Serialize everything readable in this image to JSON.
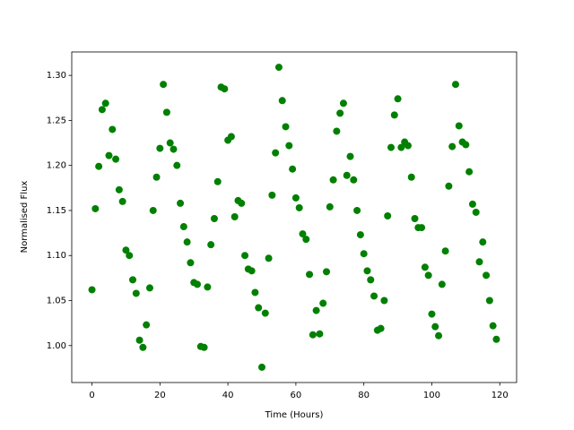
{
  "chart_data": {
    "type": "scatter",
    "xlabel": "Time (Hours)",
    "ylabel": "Normalised Flux",
    "color": "#008000",
    "x": [
      0,
      1,
      2,
      3,
      4,
      5,
      6,
      7,
      8,
      9,
      10,
      11,
      12,
      13,
      14,
      15,
      16,
      17,
      18,
      19,
      20,
      21,
      22,
      23,
      24,
      25,
      26,
      27,
      28,
      29,
      30,
      31,
      32,
      33,
      34,
      35,
      36,
      37,
      38,
      39,
      40,
      41,
      42,
      43,
      44,
      45,
      46,
      47,
      48,
      49,
      50,
      51,
      52,
      53,
      54,
      55,
      56,
      57,
      58,
      59,
      60,
      61,
      62,
      63,
      64,
      65,
      66,
      67,
      68,
      69,
      70,
      71,
      72,
      73,
      74,
      75,
      76,
      77,
      78,
      79,
      80,
      81,
      82,
      83,
      84,
      85,
      86,
      87,
      88,
      89,
      90,
      91,
      92,
      93,
      94,
      95,
      96,
      97,
      98,
      99,
      100,
      101,
      102,
      103,
      104,
      105,
      106,
      107,
      108,
      109,
      110,
      111,
      112,
      113,
      114,
      115,
      116,
      117,
      118,
      119
    ],
    "values": [
      1.062,
      1.152,
      1.199,
      1.262,
      1.269,
      1.211,
      1.24,
      1.207,
      1.173,
      1.16,
      1.106,
      1.1,
      1.073,
      1.058,
      1.006,
      0.998,
      1.023,
      1.064,
      1.15,
      1.187,
      1.219,
      1.29,
      1.259,
      1.225,
      1.218,
      1.2,
      1.158,
      1.132,
      1.115,
      1.092,
      1.07,
      1.068,
      0.999,
      0.998,
      1.065,
      1.112,
      1.141,
      1.182,
      1.287,
      1.285,
      1.228,
      1.232,
      1.143,
      1.161,
      1.158,
      1.1,
      1.085,
      1.083,
      1.059,
      1.042,
      0.976,
      1.036,
      1.097,
      1.167,
      1.214,
      1.309,
      1.272,
      1.243,
      1.222,
      1.196,
      1.164,
      1.153,
      1.124,
      1.118,
      1.079,
      1.012,
      1.039,
      1.013,
      1.047,
      1.082,
      1.154,
      1.184,
      1.238,
      1.258,
      1.269,
      1.189,
      1.21,
      1.184,
      1.15,
      1.123,
      1.102,
      1.083,
      1.073,
      1.055,
      1.017,
      1.019,
      1.05,
      1.144,
      1.22,
      1.256,
      1.274,
      1.22,
      1.226,
      1.222,
      1.187,
      1.141,
      1.131,
      1.131,
      1.087,
      1.078,
      1.035,
      1.021,
      1.011,
      1.068,
      1.105,
      1.177,
      1.221,
      1.29,
      1.244,
      1.226,
      1.223,
      1.193,
      1.157,
      1.148,
      1.093,
      1.115,
      1.078,
      1.05,
      1.022,
      1.007
    ],
    "xlim": [
      -5.95,
      124.95
    ],
    "xticks": [
      0,
      20,
      40,
      60,
      80,
      100,
      120
    ],
    "ylim": [
      0.959,
      1.326
    ],
    "yticks": [
      {
        "value": 1.0,
        "label": "1.00"
      },
      1.05,
      {
        "value": 1.1,
        "label": "1.10"
      },
      1.15,
      {
        "value": 1.2,
        "label": "1.20"
      },
      1.25,
      {
        "value": 1.3,
        "label": "1.30"
      }
    ]
  }
}
